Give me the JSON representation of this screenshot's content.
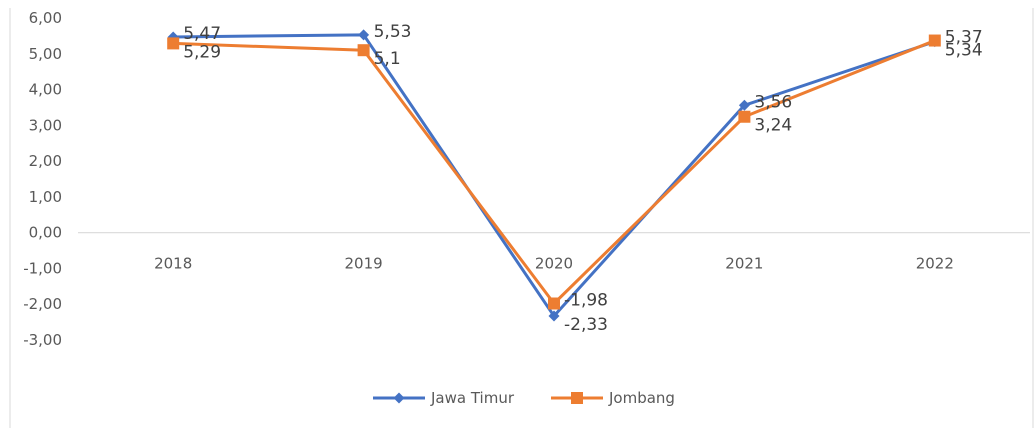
{
  "chart_data": {
    "type": "line",
    "title": "",
    "xlabel": "",
    "ylabel": "",
    "categories": [
      "2018",
      "2019",
      "2020",
      "2021",
      "2022"
    ],
    "ylim": [
      -3,
      6
    ],
    "ytick_labels": [
      "6,00",
      "5,00",
      "4,00",
      "3,00",
      "2,00",
      "1,00",
      "0,00",
      "-1,00",
      "-2,00",
      "-3,00"
    ],
    "grid": false,
    "legend": "bottom",
    "series": [
      {
        "name": "Jawa Timur",
        "color": "#4472C4",
        "marker": "diamond",
        "values": [
          5.47,
          5.53,
          -2.33,
          3.56,
          5.34
        ],
        "labels": [
          "5,47",
          "5,53",
          "-2,33",
          "3,56",
          "5,34"
        ]
      },
      {
        "name": "Jombang",
        "color": "#ED7D31",
        "marker": "square",
        "values": [
          5.29,
          5.1,
          -1.98,
          3.24,
          5.37
        ],
        "labels": [
          "5,29",
          "5,1",
          "-1,98",
          "3,24",
          "5,37"
        ]
      }
    ]
  }
}
